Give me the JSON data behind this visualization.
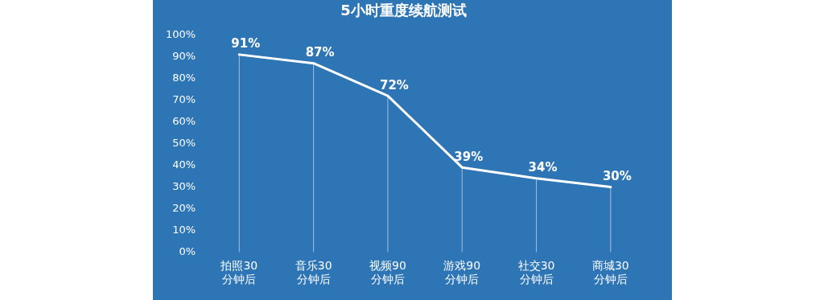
{
  "chart_data": {
    "type": "line",
    "title": "5小时重度续航测试",
    "categories": [
      "拍照30\n分钟后",
      "音乐30\n分钟后",
      "视频90\n分钟后",
      "游戏90\n分钟后",
      "社交30\n分钟后",
      "商城30\n分钟后"
    ],
    "series": [
      {
        "color": "#ffffff",
        "values": [
          91,
          87,
          72,
          39,
          34,
          30
        ]
      }
    ],
    "ylim": [
      0,
      100
    ],
    "yticks": [
      {
        "value": 0,
        "label": "0%"
      },
      {
        "value": 10,
        "label": "10%"
      },
      {
        "value": 20,
        "label": "20%"
      },
      {
        "value": 30,
        "label": "30%"
      },
      {
        "value": 40,
        "label": "40%"
      },
      {
        "value": 50,
        "label": "50%"
      },
      {
        "value": 60,
        "label": "60%"
      },
      {
        "value": 70,
        "label": "70%"
      },
      {
        "value": 80,
        "label": "80%"
      },
      {
        "value": 90,
        "label": "90%"
      },
      {
        "value": 100,
        "label": "100%"
      }
    ],
    "value_labels": [
      "91%",
      "87%",
      "72%",
      "39%",
      "34%",
      "30%"
    ],
    "grid": "x",
    "legend": false,
    "marker": "none",
    "line_style": "solid"
  }
}
